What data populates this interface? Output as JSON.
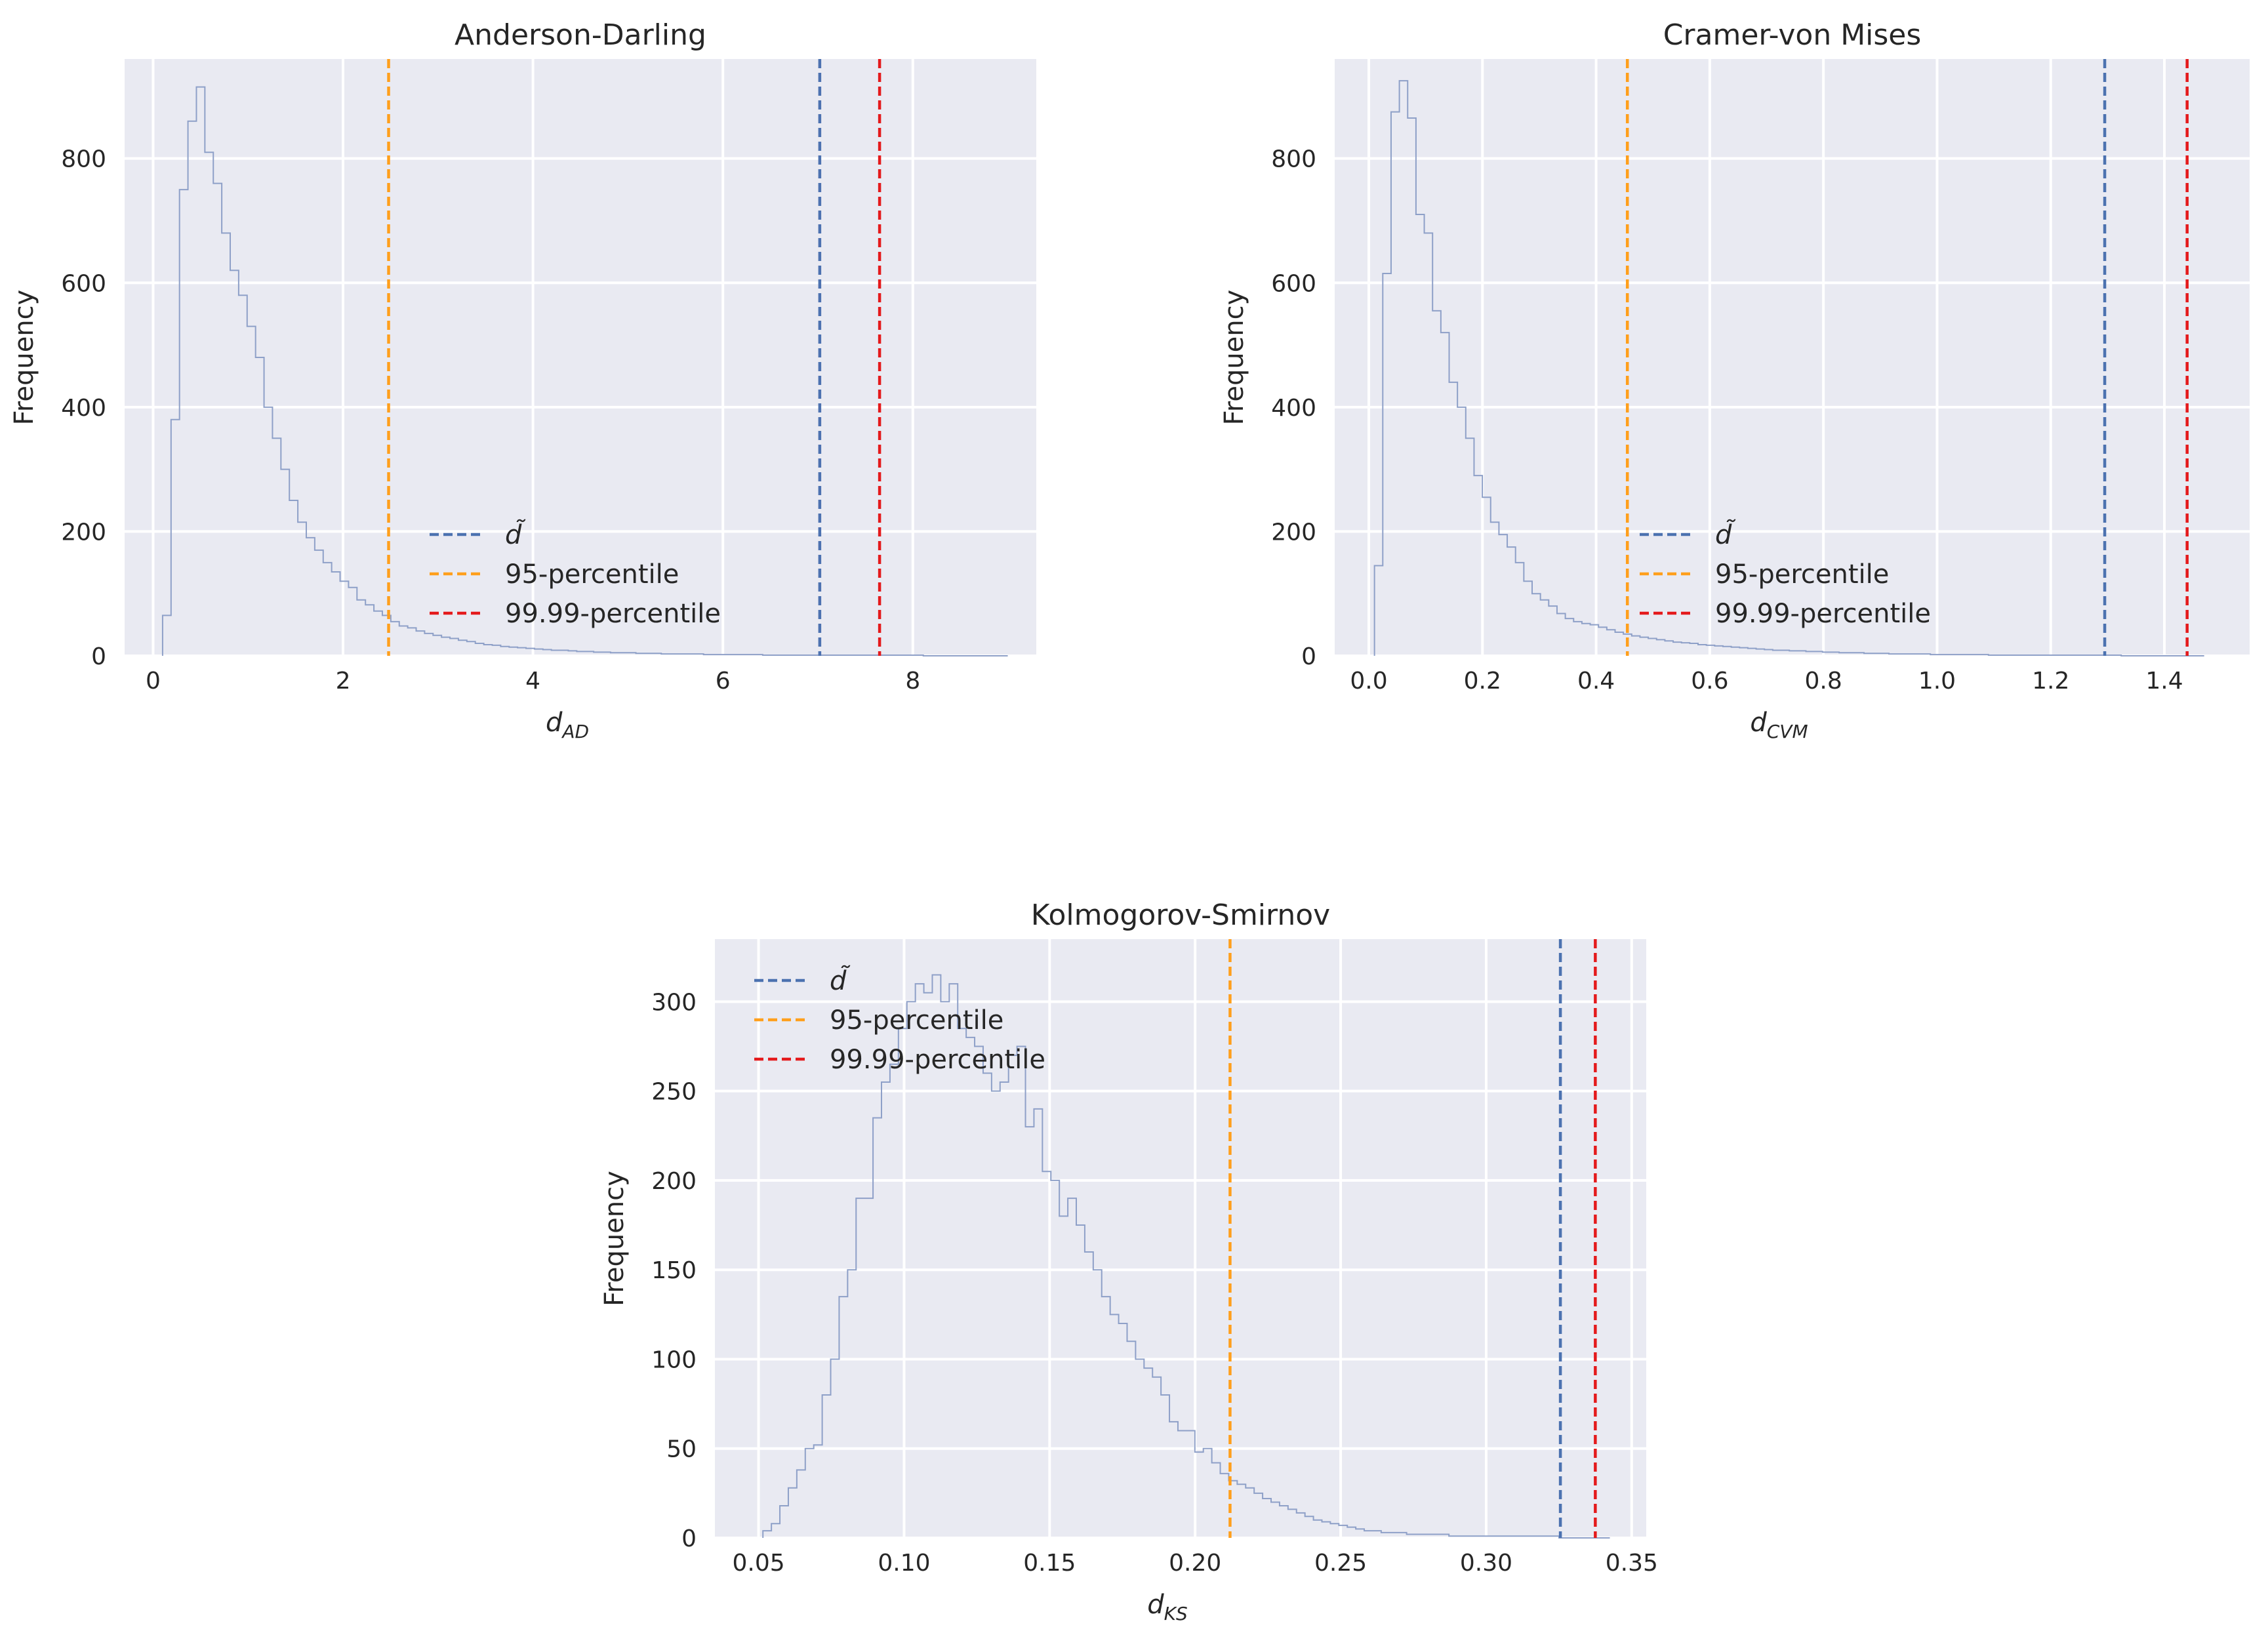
{
  "chart_data": [
    {
      "type": "histogram",
      "title": "Anderson-Darling",
      "xlabel_main": "d",
      "xlabel_sub": "AD",
      "ylabel": "Frequency",
      "xlim": [
        -0.3,
        9.3
      ],
      "ylim": [
        0,
        960
      ],
      "xticks": [
        0,
        2,
        4,
        6,
        8
      ],
      "xtick_labels": [
        "0",
        "2",
        "4",
        "6",
        "8"
      ],
      "yticks": [
        0,
        200,
        400,
        600,
        800
      ],
      "ytick_labels": [
        "0",
        "200",
        "400",
        "600",
        "800"
      ],
      "bin_start": 0.1,
      "bin_width": 0.089,
      "counts": [
        65,
        380,
        750,
        860,
        915,
        810,
        760,
        680,
        620,
        580,
        530,
        480,
        400,
        350,
        300,
        250,
        215,
        190,
        170,
        150,
        135,
        120,
        110,
        90,
        82,
        72,
        65,
        55,
        48,
        45,
        40,
        36,
        33,
        30,
        28,
        25,
        23,
        20,
        18,
        17,
        15,
        14,
        13,
        12,
        11,
        10,
        9,
        9,
        8,
        7,
        7,
        6,
        6,
        5,
        5,
        5,
        4,
        4,
        4,
        3,
        3,
        3,
        3,
        3,
        2,
        2,
        2,
        2,
        2,
        2,
        2,
        1,
        1,
        1,
        1,
        1,
        1,
        1,
        1,
        1,
        1,
        1,
        1,
        1,
        1,
        1,
        1,
        1,
        1,
        1,
        0,
        0,
        0,
        0,
        0,
        0,
        0,
        0,
        0,
        0
      ],
      "vlines": [
        {
          "label": "d̃",
          "x": 7.02,
          "color": "#4c72b0"
        },
        {
          "label": "95-percentile",
          "x": 2.48,
          "color": "#ff9f1c"
        },
        {
          "label": "99.99-percentile",
          "x": 7.65,
          "color": "#e41a1c"
        }
      ],
      "legend_loc": "lower center"
    },
    {
      "type": "histogram",
      "title": "Cramer-von Mises",
      "xlabel_main": "d",
      "xlabel_sub": "CVM",
      "ylabel": "Frequency",
      "xlim": [
        -0.06,
        1.55
      ],
      "ylim": [
        0,
        960
      ],
      "xticks": [
        0.0,
        0.2,
        0.4,
        0.6,
        0.8,
        1.0,
        1.2,
        1.4
      ],
      "xtick_labels": [
        "0.0",
        "0.2",
        "0.4",
        "0.6",
        "0.8",
        "1.0",
        "1.2",
        "1.4"
      ],
      "yticks": [
        0,
        200,
        400,
        600,
        800
      ],
      "ytick_labels": [
        "0",
        "200",
        "400",
        "600",
        "800"
      ],
      "bin_start": 0.01,
      "bin_width": 0.0146,
      "counts": [
        145,
        615,
        875,
        925,
        865,
        710,
        680,
        555,
        520,
        440,
        400,
        350,
        290,
        255,
        215,
        195,
        175,
        150,
        120,
        100,
        90,
        80,
        68,
        60,
        55,
        52,
        50,
        46,
        42,
        38,
        35,
        32,
        30,
        28,
        26,
        24,
        22,
        21,
        20,
        18,
        17,
        16,
        15,
        14,
        13,
        12,
        11,
        10,
        9,
        9,
        8,
        8,
        7,
        7,
        6,
        6,
        5,
        5,
        5,
        4,
        4,
        4,
        3,
        3,
        3,
        3,
        3,
        2,
        2,
        2,
        2,
        2,
        2,
        2,
        1,
        1,
        1,
        1,
        1,
        1,
        1,
        1,
        1,
        1,
        1,
        1,
        1,
        1,
        1,
        1,
        0,
        0,
        0,
        0,
        0,
        0,
        0,
        0,
        0,
        0
      ],
      "vlines": [
        {
          "label": "d̃",
          "x": 1.295,
          "color": "#4c72b0"
        },
        {
          "label": "95-percentile",
          "x": 0.455,
          "color": "#ff9f1c"
        },
        {
          "label": "99.99-percentile",
          "x": 1.44,
          "color": "#e41a1c"
        }
      ],
      "legend_loc": "lower center"
    },
    {
      "type": "histogram",
      "title": "Kolmogorov-Smirnov",
      "xlabel_main": "d",
      "xlabel_sub": "KS",
      "ylabel": "Frequency",
      "xlim": [
        0.035,
        0.355
      ],
      "ylim": [
        0,
        335
      ],
      "xticks": [
        0.05,
        0.1,
        0.15,
        0.2,
        0.25,
        0.3,
        0.35
      ],
      "xtick_labels": [
        "0.05",
        "0.10",
        "0.15",
        "0.20",
        "0.25",
        "0.30",
        "0.35"
      ],
      "yticks": [
        0,
        50,
        100,
        150,
        200,
        250,
        300
      ],
      "ytick_labels": [
        "0",
        "50",
        "100",
        "150",
        "200",
        "250",
        "300"
      ],
      "bin_start": 0.0515,
      "bin_width": 0.00291,
      "counts": [
        4,
        8,
        18,
        28,
        38,
        50,
        52,
        80,
        100,
        135,
        150,
        190,
        190,
        235,
        255,
        265,
        285,
        300,
        310,
        305,
        315,
        300,
        310,
        285,
        280,
        275,
        260,
        250,
        255,
        270,
        275,
        230,
        240,
        205,
        200,
        180,
        190,
        175,
        160,
        150,
        135,
        125,
        120,
        110,
        100,
        95,
        90,
        80,
        65,
        60,
        60,
        48,
        50,
        42,
        36,
        32,
        30,
        28,
        25,
        22,
        20,
        18,
        16,
        14,
        12,
        10,
        9,
        8,
        7,
        6,
        5,
        4,
        4,
        3,
        3,
        3,
        2,
        2,
        2,
        2,
        2,
        1,
        1,
        1,
        1,
        1,
        1,
        1,
        1,
        1,
        1,
        1,
        1,
        1,
        0,
        0,
        0,
        0,
        0,
        0
      ],
      "vlines": [
        {
          "label": "d̃",
          "x": 0.3255,
          "color": "#4c72b0"
        },
        {
          "label": "95-percentile",
          "x": 0.212,
          "color": "#ff9f1c"
        },
        {
          "label": "99.99-percentile",
          "x": 0.3375,
          "color": "#e41a1c"
        }
      ],
      "legend_loc": "upper left"
    }
  ],
  "colors": {
    "axes_bg": "#e9eaf2",
    "grid": "#ffffff",
    "hist_line": "#8ea0c8"
  }
}
